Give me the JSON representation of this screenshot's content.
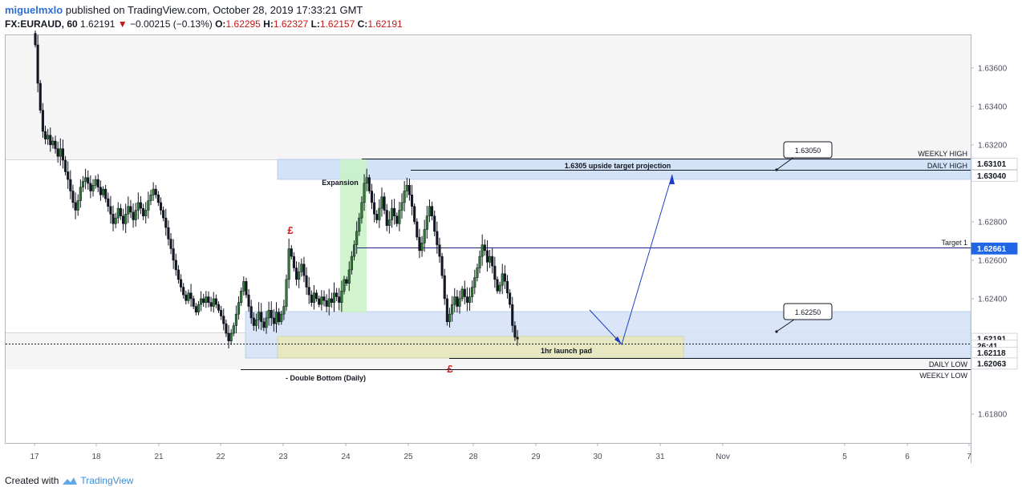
{
  "header": {
    "user": "miguelmxlo",
    "published": "published on TradingView.com, October 28, 2019 17:33:21 GMT",
    "symbol": "FX:EURAUD, 60",
    "last": "1.62191",
    "arrow": "▼",
    "change": "−0.00215 (−0.13%)",
    "o_label": "O:",
    "o_value": "1.62295",
    "h_label": "H:",
    "h_value": "1.62327",
    "l_label": "L:",
    "l_value": "1.62157",
    "c_label": "C:",
    "c_value": "1.62191"
  },
  "footer": {
    "created_with": "Created with",
    "brand": "TradingView"
  },
  "chart_data": {
    "type": "candlestick",
    "ylim": [
      1.6165,
      1.6377
    ],
    "y_ticks": [
      1.618,
      1.624,
      1.626,
      1.628,
      1.632,
      1.634,
      1.636
    ],
    "y_tick_labels": [
      "1.61800",
      "1.62400",
      "1.62600",
      "1.62800",
      "1.63200",
      "1.63400",
      "1.63600"
    ],
    "x_ticks": [
      "17",
      "18",
      "21",
      "22",
      "23",
      "24",
      "25",
      "28",
      "29",
      "30",
      "31",
      "Nov",
      "5",
      "6",
      "7"
    ],
    "price_tags": [
      {
        "label": "1.63101",
        "value": 1.63101,
        "style": "light"
      },
      {
        "label": "1.63040",
        "value": 1.6304,
        "style": "light"
      },
      {
        "label": "1.62661",
        "value": 1.62661,
        "style": "blue"
      },
      {
        "label": "1.62191",
        "value": 1.62191,
        "style": "light"
      },
      {
        "label": "26:41",
        "value": 1.62155,
        "style": "light"
      },
      {
        "label": "1.62118",
        "value": 1.62118,
        "style": "light"
      },
      {
        "label": "1.62063",
        "value": 1.62063,
        "style": "light"
      }
    ],
    "levels": [
      {
        "label": "WEEKLY HIGH",
        "value": 1.63101
      },
      {
        "label": "DAILY HIGH",
        "value": 1.6304
      },
      {
        "label": "Target 1",
        "value": 1.62661
      },
      {
        "label": "DAILY LOW",
        "value": 1.62118
      },
      {
        "label": "WEEKLY LOW",
        "value": 1.62063
      }
    ],
    "annotations": {
      "target_projection": "1.6305 upside target projection",
      "expansion": "Expansion",
      "launch_pad": "1hr launch pad",
      "double_bottom": "- Double Bottom (Daily)",
      "pound_top": "£",
      "pound_bottom": "£",
      "callout_high": "1.63050",
      "callout_low": "1.62250"
    },
    "closes": [
      1.6372,
      1.6352,
      1.6338,
      1.6327,
      1.6323,
      1.6325,
      1.632,
      1.6322,
      1.6318,
      1.6314,
      1.6318,
      1.6312,
      1.6306,
      1.6302,
      1.6296,
      1.629,
      1.6286,
      1.6291,
      1.6298,
      1.6301,
      1.6303,
      1.63,
      1.6296,
      1.6299,
      1.6302,
      1.6298,
      1.6294,
      1.6297,
      1.6292,
      1.6288,
      1.6284,
      1.6279,
      1.6282,
      1.6287,
      1.6283,
      1.6279,
      1.6284,
      1.6288,
      1.6285,
      1.6281,
      1.6286,
      1.629,
      1.6287,
      1.6283,
      1.6286,
      1.6291,
      1.6294,
      1.6297,
      1.6294,
      1.629,
      1.6286,
      1.6282,
      1.6277,
      1.6271,
      1.6266,
      1.626,
      1.6255,
      1.625,
      1.6246,
      1.6242,
      1.6239,
      1.6243,
      1.624,
      1.6236,
      1.6233,
      1.6237,
      1.624,
      1.6238,
      1.6241,
      1.6238,
      1.6236,
      1.624,
      1.6237,
      1.6234,
      1.6231,
      1.6227,
      1.6222,
      1.6218,
      1.6222,
      1.6226,
      1.6232,
      1.6238,
      1.6244,
      1.6249,
      1.6242,
      1.6236,
      1.623,
      1.6226,
      1.6229,
      1.6233,
      1.6228,
      1.6225,
      1.623,
      1.6234,
      1.623,
      1.6227,
      1.6233,
      1.6228,
      1.6232,
      1.6236,
      1.625,
      1.6266,
      1.6262,
      1.6256,
      1.625,
      1.6254,
      1.6258,
      1.6252,
      1.6246,
      1.6242,
      1.6238,
      1.6243,
      1.624,
      1.6237,
      1.6241,
      1.6239,
      1.6236,
      1.624,
      1.6238,
      1.6243,
      1.6241,
      1.6238,
      1.6244,
      1.625,
      1.6248,
      1.6255,
      1.6262,
      1.6268,
      1.6275,
      1.6282,
      1.629,
      1.63,
      1.6303,
      1.6296,
      1.629,
      1.6284,
      1.6281,
      1.6287,
      1.6293,
      1.6286,
      1.6278,
      1.6281,
      1.6287,
      1.6283,
      1.6279,
      1.6286,
      1.629,
      1.6296,
      1.6299,
      1.6294,
      1.6288,
      1.628,
      1.6272,
      1.6265,
      1.6269,
      1.6276,
      1.6283,
      1.6288,
      1.6283,
      1.6275,
      1.6268,
      1.6262,
      1.6252,
      1.624,
      1.6228,
      1.6232,
      1.6237,
      1.6241,
      1.6236,
      1.624,
      1.6245,
      1.6241,
      1.6238,
      1.6241,
      1.6246,
      1.6251,
      1.6256,
      1.6262,
      1.6268,
      1.6265,
      1.6259,
      1.6262,
      1.6257,
      1.625,
      1.6244,
      1.6247,
      1.6253,
      1.6249,
      1.6243,
      1.6237,
      1.6226,
      1.622,
      1.6219
    ]
  }
}
